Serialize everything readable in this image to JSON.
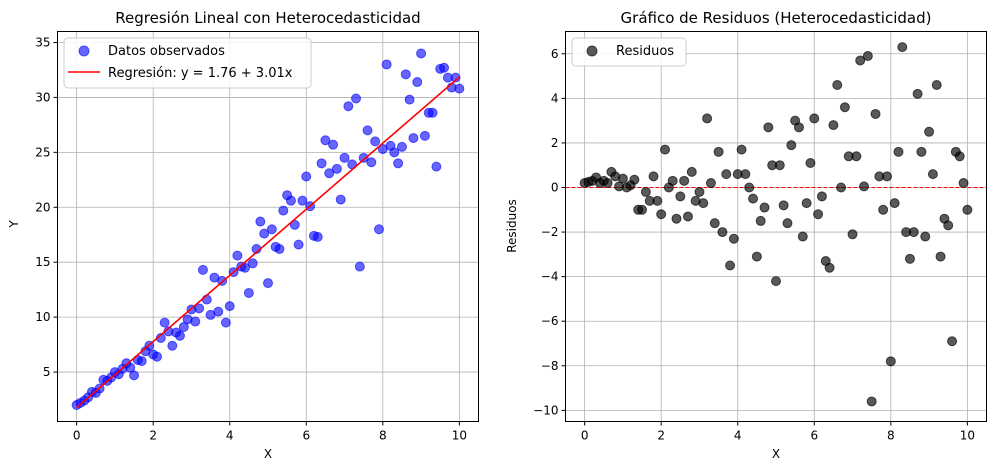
{
  "chart_data": [
    {
      "type": "scatter",
      "title": "Regresión Lineal con Heterocedasticidad",
      "xlabel": "X",
      "ylabel": "Y",
      "xlim": [
        -0.5,
        10.5
      ],
      "ylim": [
        0.5,
        36
      ],
      "xticks": [
        0,
        2,
        4,
        6,
        8,
        10
      ],
      "yticks": [
        5,
        10,
        15,
        20,
        25,
        30,
        35
      ],
      "grid": true,
      "legend_position": "top-left",
      "colors": {
        "points": "#0000ff",
        "line": "#ff0000"
      },
      "series": [
        {
          "name": "Datos observados",
          "kind": "scatter",
          "x": [
            0.0,
            0.1,
            0.2,
            0.3,
            0.4,
            0.5,
            0.6,
            0.7,
            0.8,
            0.9,
            1.0,
            1.1,
            1.2,
            1.3,
            1.4,
            1.5,
            1.6,
            1.7,
            1.8,
            1.9,
            2.0,
            2.1,
            2.2,
            2.3,
            2.4,
            2.5,
            2.6,
            2.7,
            2.8,
            2.9,
            3.0,
            3.1,
            3.2,
            3.3,
            3.4,
            3.5,
            3.6,
            3.7,
            3.8,
            3.9,
            4.0,
            4.1,
            4.2,
            4.3,
            4.4,
            4.5,
            4.6,
            4.7,
            4.8,
            4.9,
            5.0,
            5.1,
            5.2,
            5.3,
            5.4,
            5.5,
            5.6,
            5.7,
            5.8,
            5.9,
            6.0,
            6.1,
            6.2,
            6.3,
            6.4,
            6.5,
            6.6,
            6.7,
            6.8,
            6.9,
            7.0,
            7.1,
            7.2,
            7.3,
            7.4,
            7.5,
            7.6,
            7.7,
            7.8,
            7.9,
            8.0,
            8.1,
            8.2,
            8.3,
            8.4,
            8.5,
            8.6,
            8.7,
            8.8,
            8.9,
            9.0,
            9.1,
            9.2,
            9.3,
            9.4,
            9.5,
            9.6,
            9.7,
            9.8,
            9.9,
            10.0
          ],
          "y": [
            2.0,
            2.2,
            2.4,
            2.7,
            3.2,
            3.1,
            3.5,
            4.3,
            4.2,
            4.5,
            5.0,
            4.8,
            5.3,
            5.8,
            5.4,
            4.7,
            6.1,
            6.0,
            6.9,
            7.4,
            6.6,
            6.4,
            8.1,
            9.5,
            8.7,
            7.4,
            8.6,
            8.3,
            9.1,
            9.8,
            10.7,
            9.6,
            10.8,
            14.3,
            11.6,
            10.2,
            13.6,
            10.5,
            13.3,
            9.5,
            11.0,
            14.1,
            15.6,
            14.6,
            14.5,
            12.2,
            14.9,
            16.2,
            18.7,
            17.6,
            13.1,
            18.0,
            16.4,
            16.2,
            19.7,
            21.1,
            20.6,
            18.4,
            16.6,
            20.6,
            22.8,
            20.1,
            17.4,
            17.3,
            24.0,
            26.1,
            23.1,
            25.7,
            23.5,
            20.7,
            24.5,
            29.2,
            23.9,
            29.9,
            14.6,
            24.5,
            27.0,
            24.1,
            26.0,
            18.0,
            25.3,
            33.0,
            25.6,
            25.0,
            24.0,
            25.5,
            32.1,
            29.8,
            26.3,
            31.4,
            34.0,
            26.5,
            28.6,
            28.6,
            23.7,
            32.6,
            32.7,
            31.8,
            30.9,
            31.8,
            30.8
          ]
        },
        {
          "name": "Regresión: y = 1.76 + 3.01x",
          "kind": "line",
          "x": [
            0,
            10
          ],
          "y": [
            1.76,
            31.86
          ]
        }
      ]
    },
    {
      "type": "scatter",
      "title": "Gráfico de Residuos (Heterocedasticidad)",
      "xlabel": "X",
      "ylabel": "Residuos",
      "xlim": [
        -0.5,
        10.5
      ],
      "ylim": [
        -10.5,
        7
      ],
      "xticks": [
        0,
        2,
        4,
        6,
        8,
        10
      ],
      "yticks": [
        -10,
        -8,
        -6,
        -4,
        -2,
        0,
        2,
        4,
        6
      ],
      "grid": true,
      "legend_position": "top-left",
      "reference_line": {
        "y": 0,
        "style": "dashed",
        "color": "#ff0000"
      },
      "colors": {
        "points": "#000000"
      },
      "series": [
        {
          "name": "Residuos",
          "kind": "scatter",
          "x": [
            0.0,
            0.1,
            0.2,
            0.3,
            0.4,
            0.5,
            0.6,
            0.7,
            0.8,
            0.9,
            1.0,
            1.1,
            1.2,
            1.3,
            1.4,
            1.5,
            1.6,
            1.7,
            1.8,
            1.9,
            2.0,
            2.1,
            2.2,
            2.3,
            2.4,
            2.5,
            2.6,
            2.7,
            2.8,
            2.9,
            3.0,
            3.1,
            3.2,
            3.3,
            3.4,
            3.5,
            3.6,
            3.7,
            3.8,
            3.9,
            4.0,
            4.1,
            4.2,
            4.3,
            4.4,
            4.5,
            4.6,
            4.7,
            4.8,
            4.9,
            5.0,
            5.1,
            5.2,
            5.3,
            5.4,
            5.5,
            5.6,
            5.7,
            5.8,
            5.9,
            6.0,
            6.1,
            6.2,
            6.3,
            6.4,
            6.5,
            6.6,
            6.7,
            6.8,
            6.9,
            7.0,
            7.1,
            7.2,
            7.3,
            7.4,
            7.5,
            7.6,
            7.7,
            7.8,
            7.9,
            8.0,
            8.1,
            8.2,
            8.3,
            8.4,
            8.5,
            8.6,
            8.7,
            8.8,
            8.9,
            9.0,
            9.1,
            9.2,
            9.3,
            9.4,
            9.5,
            9.6,
            9.7,
            9.8,
            9.9,
            10.0
          ],
          "y": [
            0.2,
            0.25,
            0.3,
            0.45,
            0.2,
            0.3,
            0.2,
            0.7,
            0.5,
            0.05,
            0.4,
            0.0,
            0.1,
            0.35,
            -1.0,
            -1.0,
            -0.2,
            -0.6,
            0.5,
            -0.6,
            -1.2,
            1.7,
            0.0,
            0.3,
            -1.4,
            -0.4,
            0.3,
            -1.3,
            0.7,
            -0.6,
            -0.2,
            -0.7,
            3.1,
            0.2,
            -1.6,
            1.6,
            -2.0,
            0.6,
            -3.5,
            -2.3,
            0.6,
            1.7,
            0.6,
            0.0,
            -0.5,
            -3.1,
            -1.5,
            -0.9,
            2.7,
            1.0,
            -4.2,
            1.0,
            -0.8,
            -1.6,
            1.9,
            3.0,
            2.7,
            -2.2,
            -0.7,
            1.1,
            3.1,
            -1.2,
            -0.4,
            -3.3,
            -3.6,
            2.8,
            4.6,
            0.0,
            3.6,
            1.4,
            -2.1,
            1.4,
            5.7,
            0.05,
            5.9,
            -9.6,
            3.3,
            0.5,
            -1.0,
            0.5,
            -7.8,
            -0.7,
            1.6,
            6.3,
            -2.0,
            -3.2,
            -2.0,
            4.2,
            1.6,
            -2.2,
            2.5,
            0.6,
            4.6,
            -3.1,
            -1.4,
            -1.7,
            -6.9,
            1.6,
            1.4,
            0.2,
            -1.0
          ]
        }
      ]
    }
  ]
}
